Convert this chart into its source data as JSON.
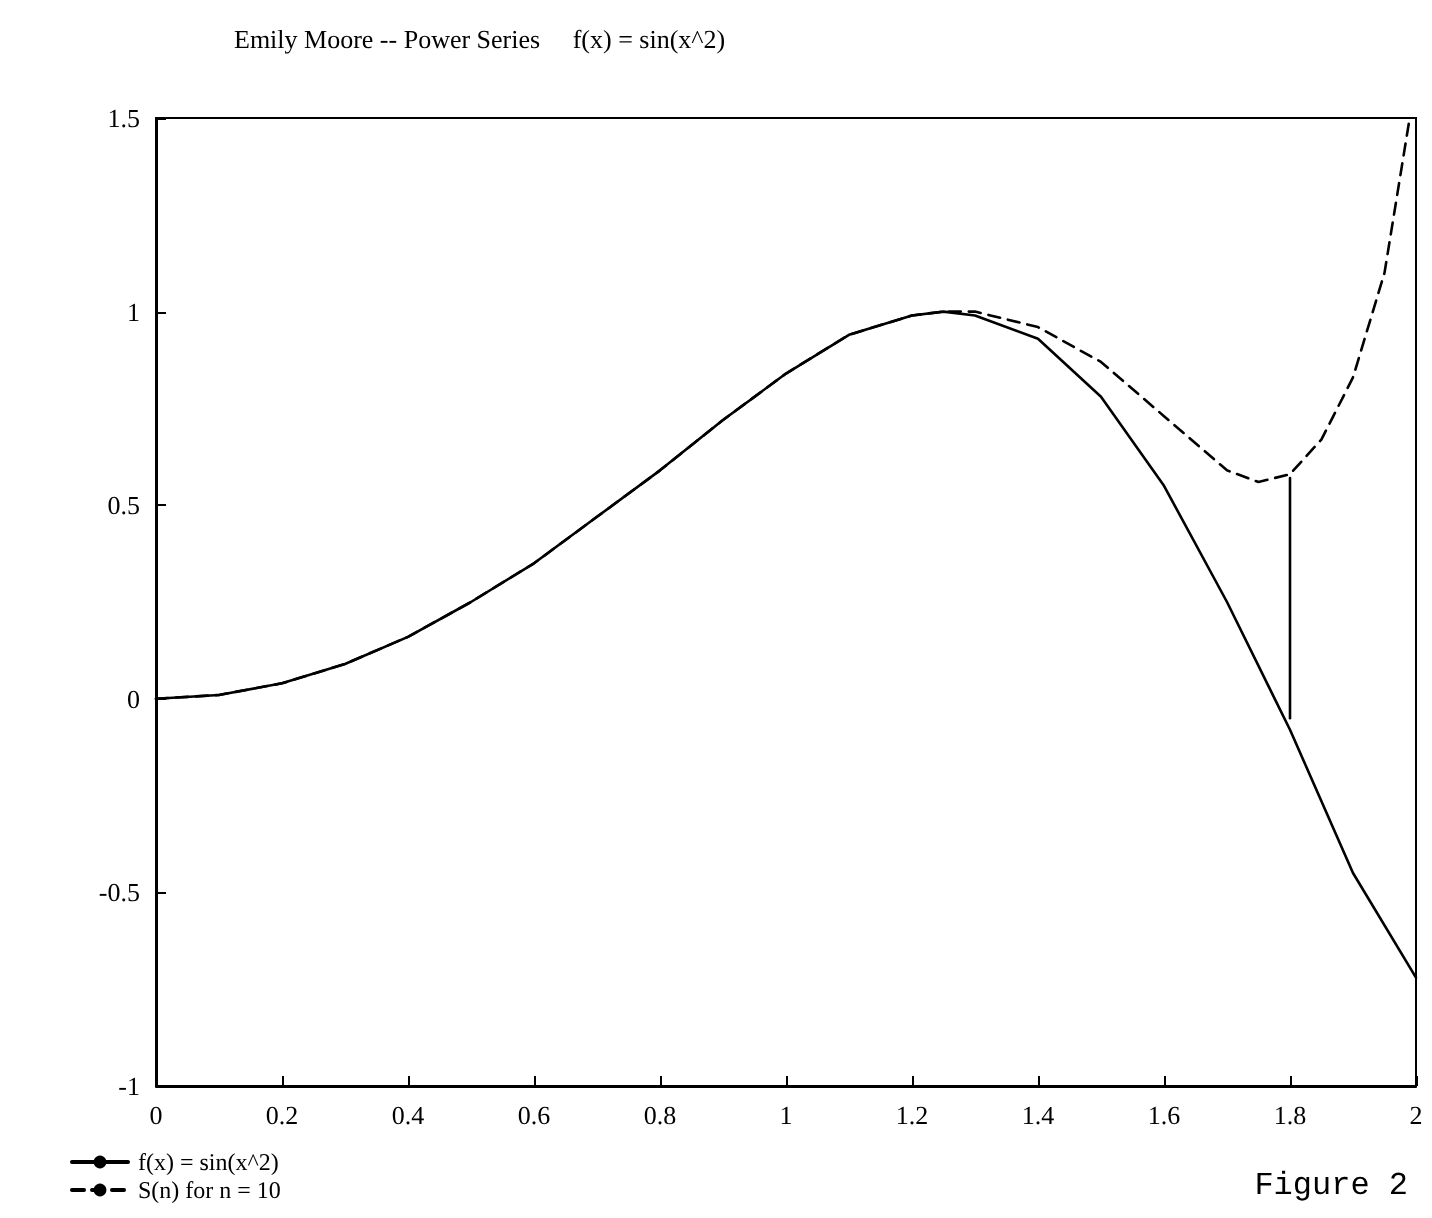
{
  "chart_data": {
    "type": "line",
    "title": "Emily Moore -- Power Series     f(x) = sin(x^2)",
    "series": [
      {
        "name": "f(x) = sin(x^2)",
        "color": "#000000",
        "line_style": "solid",
        "x": [
          0,
          0.1,
          0.2,
          0.3,
          0.4,
          0.5,
          0.6,
          0.7,
          0.8,
          0.9,
          1.0,
          1.1,
          1.2,
          1.25,
          1.3,
          1.4,
          1.5,
          1.6,
          1.7,
          1.8,
          1.9,
          2.0
        ],
        "values": [
          0,
          0.01,
          0.04,
          0.09,
          0.16,
          0.25,
          0.35,
          0.47,
          0.59,
          0.72,
          0.84,
          0.94,
          0.99,
          1.0,
          0.99,
          0.93,
          0.78,
          0.55,
          0.25,
          -0.08,
          -0.45,
          -0.72
        ]
      },
      {
        "name": "S(n) for n = 10",
        "color": "#000000",
        "line_style": "dashed",
        "x": [
          0,
          0.1,
          0.2,
          0.3,
          0.4,
          0.5,
          0.6,
          0.7,
          0.8,
          0.9,
          1.0,
          1.1,
          1.2,
          1.25,
          1.3,
          1.35,
          1.4,
          1.5,
          1.6,
          1.7,
          1.75,
          1.8,
          1.85,
          1.9,
          1.95,
          1.99
        ],
        "values": [
          0,
          0.01,
          0.04,
          0.09,
          0.16,
          0.25,
          0.35,
          0.47,
          0.59,
          0.72,
          0.84,
          0.94,
          0.99,
          1.0,
          1.0,
          0.98,
          0.96,
          0.87,
          0.73,
          0.59,
          0.56,
          0.58,
          0.67,
          0.83,
          1.1,
          1.5
        ]
      },
      {
        "color": "#000000",
        "line_style": "solid",
        "x": [
          1.8,
          1.8
        ],
        "values": [
          -0.05,
          0.57
        ]
      }
    ],
    "xlim": [
      0,
      2
    ],
    "xticks": [
      0,
      0.2,
      0.4,
      0.6,
      0.8,
      1,
      1.2,
      1.4,
      1.6,
      1.8,
      2
    ],
    "ylim": [
      -1,
      1.5
    ],
    "yticks": [
      -1,
      -0.5,
      0,
      0.5,
      1,
      1.5
    ],
    "grid": false,
    "legend": "bottom left",
    "marker": "none",
    "annotations": [
      "Figure 2"
    ]
  }
}
